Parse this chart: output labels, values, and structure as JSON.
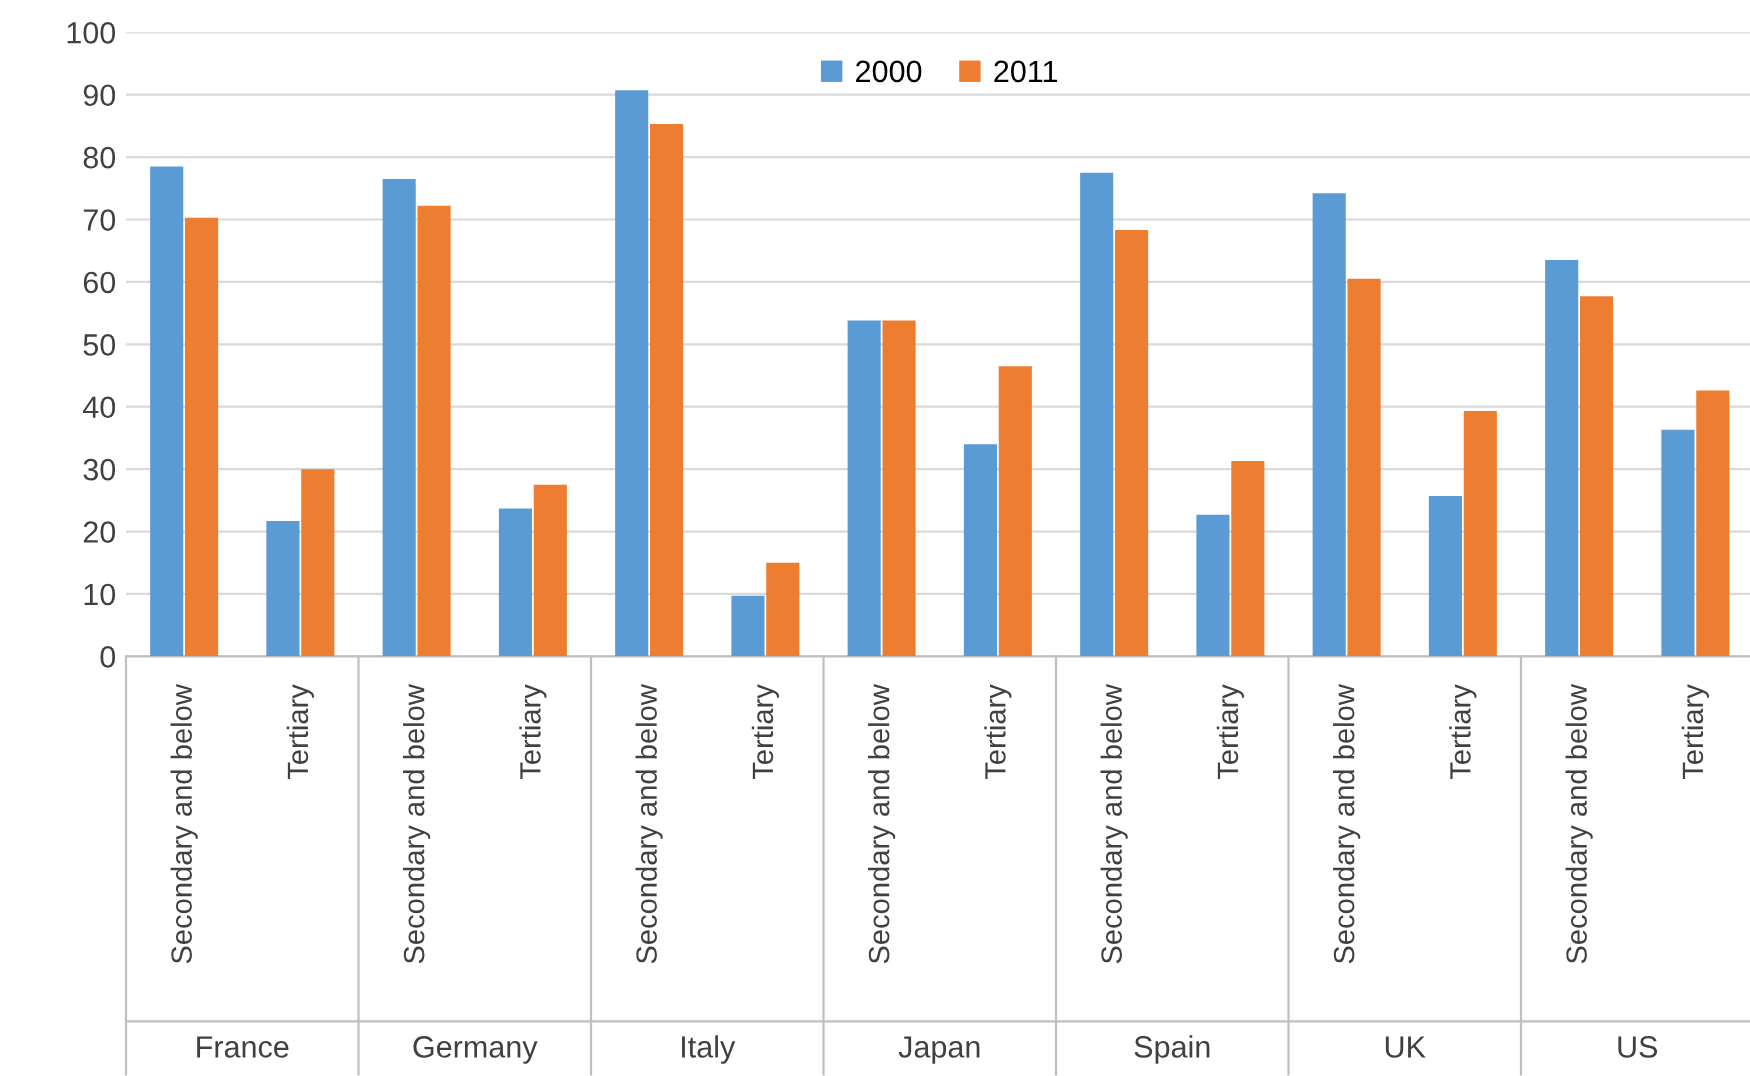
{
  "chart_data": {
    "type": "bar",
    "categories": [
      "Secondary and below",
      "Tertiary",
      "Secondary and below",
      "Tertiary",
      "Secondary and below",
      "Tertiary",
      "Secondary and below",
      "Tertiary",
      "Secondary and below",
      "Tertiary",
      "Secondary and below",
      "Tertiary",
      "Secondary and below",
      "Tertiary"
    ],
    "series": [
      {
        "name": "2000",
        "color": "#5b9bd5",
        "values": [
          78.5,
          21.7,
          76.5,
          23.7,
          90.7,
          9.7,
          53.8,
          34,
          77.5,
          22.7,
          74.2,
          25.7,
          63.5,
          36.3
        ]
      },
      {
        "name": "2011",
        "color": "#ed7d31",
        "values": [
          70.3,
          30,
          72.2,
          27.5,
          85.3,
          15,
          53.8,
          46.5,
          68.3,
          31.3,
          60.5,
          39.3,
          57.7,
          42.6
        ]
      }
    ],
    "annotations": [
      "France",
      "Germany",
      "Italy",
      "Japan",
      "Spain",
      "UK",
      "US"
    ],
    "ylim": [
      0,
      100
    ],
    "yticks": [
      0,
      10,
      20,
      30,
      40,
      50,
      60,
      70,
      80,
      90,
      100
    ],
    "grid": "y",
    "legend": "top"
  }
}
